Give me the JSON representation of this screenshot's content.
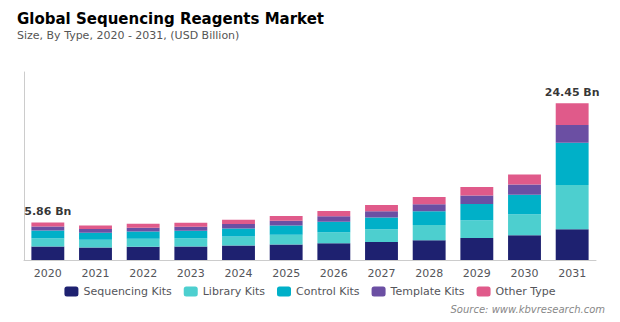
{
  "chart_data": {
    "type": "bar",
    "stacked": true,
    "title": "Global Sequencing Reagents Market",
    "subtitle": "Size, By Type, 2020 - 2031, (USD Billion)",
    "source": "Source: www.kbvresearch.com",
    "categories": [
      "2020",
      "2021",
      "2022",
      "2023",
      "2024",
      "2025",
      "2026",
      "2027",
      "2028",
      "2029",
      "2030",
      "2031"
    ],
    "series": [
      {
        "name": "Sequencing Kits",
        "color": "#1e2170",
        "values": [
          2.1,
          1.95,
          2.05,
          2.1,
          2.25,
          2.4,
          2.6,
          2.8,
          3.1,
          3.45,
          3.85,
          4.8
        ]
      },
      {
        "name": "Library Kits",
        "color": "#4dcfcf",
        "values": [
          1.3,
          1.2,
          1.25,
          1.28,
          1.4,
          1.55,
          1.75,
          2.0,
          2.35,
          2.75,
          3.3,
          6.9
        ]
      },
      {
        "name": "Control Kits",
        "color": "#00b0c8",
        "values": [
          1.2,
          1.1,
          1.15,
          1.18,
          1.28,
          1.42,
          1.62,
          1.85,
          2.15,
          2.55,
          3.05,
          6.6
        ]
      },
      {
        "name": "Template Kits",
        "color": "#6b4fa3",
        "values": [
          0.63,
          0.58,
          0.6,
          0.62,
          0.67,
          0.74,
          0.84,
          0.97,
          1.12,
          1.32,
          1.58,
          2.75
        ]
      },
      {
        "name": "Other Type",
        "color": "#e05a8a",
        "values": [
          0.63,
          0.57,
          0.6,
          0.62,
          0.67,
          0.74,
          0.84,
          0.97,
          1.12,
          1.32,
          1.58,
          3.4
        ]
      }
    ],
    "annotations": [
      {
        "text": "5.86 Bn",
        "category": "2020",
        "value": 5.86
      },
      {
        "text": "24.45 Bn",
        "category": "2031",
        "value": 24.45
      }
    ],
    "ylim": [
      0,
      29.34
    ],
    "tick_labels": "x",
    "grid": false,
    "legend": "bottom"
  }
}
